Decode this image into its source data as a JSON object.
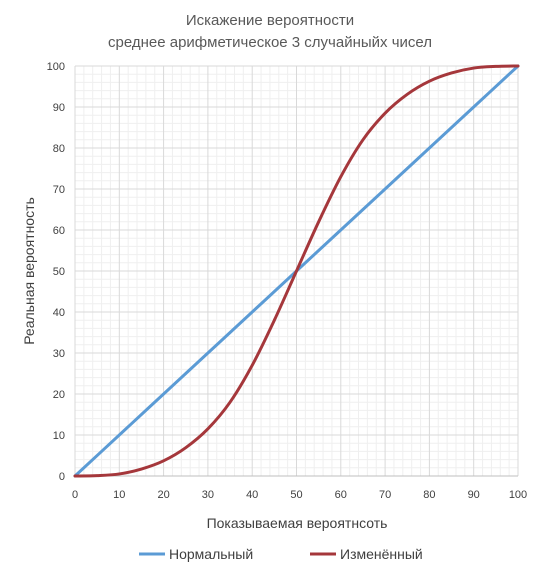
{
  "chart_data": {
    "type": "line",
    "title": [
      "Искажение вероятности",
      "среднее арифметическое 3 случайныйх чисел"
    ],
    "xlabel": "Показываемая вероятнсоть",
    "ylabel": "Реальная вероятность",
    "xlim": [
      0,
      100
    ],
    "ylim": [
      0,
      100
    ],
    "x_ticks": [
      0,
      10,
      20,
      30,
      40,
      50,
      60,
      70,
      80,
      90,
      100
    ],
    "y_ticks": [
      0,
      10,
      20,
      30,
      40,
      50,
      60,
      70,
      80,
      90,
      100
    ],
    "grid": true,
    "legend_position": "bottom",
    "series": [
      {
        "name": "Нормальный",
        "color": "#5b9bd5",
        "x": [
          0,
          10,
          20,
          30,
          40,
          50,
          60,
          70,
          80,
          90,
          100
        ],
        "y": [
          0,
          10,
          20,
          30,
          40,
          50,
          60,
          70,
          80,
          90,
          100
        ]
      },
      {
        "name": "Изменённый",
        "color": "#a5373b",
        "x": [
          0,
          5,
          10,
          15,
          20,
          25,
          30,
          35,
          40,
          45,
          50,
          55,
          60,
          65,
          70,
          75,
          80,
          85,
          90,
          95,
          100
        ],
        "y": [
          0,
          0.1,
          0.5,
          1.7,
          3.7,
          6.9,
          11.5,
          18.0,
          27.0,
          38.0,
          50.0,
          62.0,
          73.0,
          82.0,
          88.5,
          93.1,
          96.3,
          98.3,
          99.5,
          99.9,
          100
        ]
      }
    ]
  }
}
